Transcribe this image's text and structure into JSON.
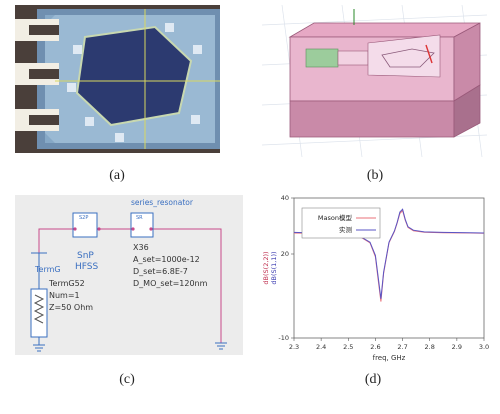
{
  "captions": {
    "a": "(a)",
    "b": "(b)",
    "c": "(c)",
    "d": "(d)"
  },
  "schematic": {
    "snp_title": "SnP",
    "snp_name": "HFSS",
    "term_type": "TermG",
    "term_name": "TermG52",
    "term_num": "Num=1",
    "term_z": "Z=50 Ohm",
    "res_type": "series_resonator",
    "res_name": "X36",
    "res_a": "A_set=1000e-12",
    "res_d": "D_set=6.8E-7",
    "res_dmo": "D_MO_set=120nm",
    "box1_label": "S2P",
    "box2_label": "SR"
  },
  "chart_data": {
    "type": "line",
    "title": "",
    "xlabel": "freq, GHz",
    "ylabel": "dB(S(2,2))",
    "ylabel2": "dB(S(1,1))",
    "xlim": [
      2.3,
      3.0
    ],
    "ylim": [
      -10,
      40
    ],
    "xticks": [
      "2.3",
      "2.4",
      "2.5",
      "2.6",
      "2.7",
      "2.8",
      "2.9",
      "3.0"
    ],
    "yticks": [
      "-10",
      "20",
      "40"
    ],
    "legend_position": "top-left",
    "series": [
      {
        "name": "Mason模型",
        "color": "#e8707a",
        "x": [
          2.3,
          2.35,
          2.4,
          2.45,
          2.5,
          2.55,
          2.58,
          2.6,
          2.61,
          2.62,
          2.63,
          2.65,
          2.67,
          2.68,
          2.69,
          2.7,
          2.71,
          2.72,
          2.74,
          2.78,
          2.85,
          2.95,
          3.0
        ],
        "y": [
          27.5,
          27.4,
          27.3,
          27.1,
          26.8,
          25.8,
          24.0,
          19.0,
          11.0,
          3.0,
          13.0,
          24.0,
          28.0,
          31.0,
          34.5,
          35.5,
          32.0,
          29.5,
          28.3,
          27.8,
          27.6,
          27.5,
          27.4
        ]
      },
      {
        "name": "实测",
        "color": "#5a55c4",
        "x": [
          2.3,
          2.35,
          2.4,
          2.45,
          2.5,
          2.55,
          2.58,
          2.6,
          2.61,
          2.62,
          2.63,
          2.65,
          2.67,
          2.68,
          2.69,
          2.7,
          2.71,
          2.72,
          2.74,
          2.78,
          2.85,
          2.95,
          3.0
        ],
        "y": [
          27.7,
          27.6,
          27.4,
          27.2,
          26.9,
          25.9,
          24.2,
          19.5,
          12.0,
          4.0,
          13.5,
          24.2,
          28.2,
          31.2,
          35.0,
          36.0,
          32.3,
          29.7,
          28.5,
          27.9,
          27.7,
          27.6,
          27.5
        ]
      }
    ]
  }
}
